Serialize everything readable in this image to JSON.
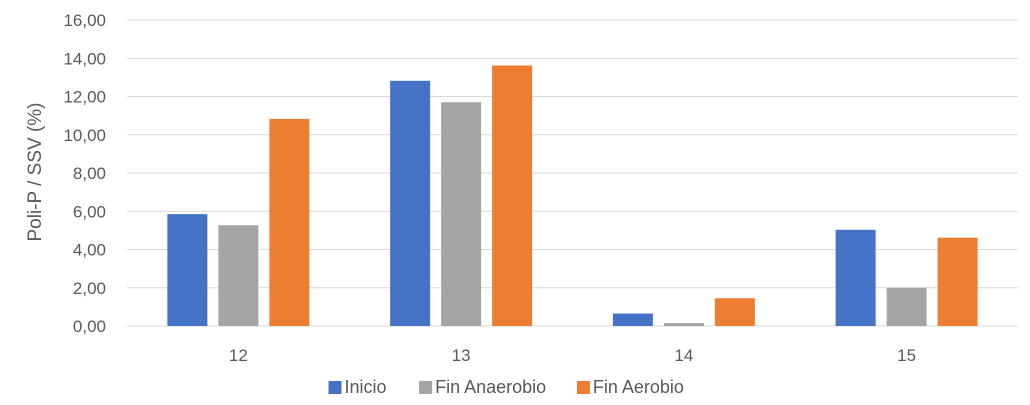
{
  "chart_data": {
    "type": "bar",
    "title": "",
    "xlabel": "",
    "ylabel": "Poli-P / SSV (%)",
    "categories": [
      "12",
      "13",
      "14",
      "15"
    ],
    "series": [
      {
        "name": "Inicio",
        "color": "#4472C4",
        "values": [
          5.85,
          12.82,
          0.65,
          5.03
        ]
      },
      {
        "name": "Fin Anaerobio",
        "color": "#A5A5A5",
        "values": [
          5.27,
          11.7,
          0.15,
          2.0
        ]
      },
      {
        "name": "Fin Aerobio",
        "color": "#ED7D31",
        "values": [
          10.83,
          13.62,
          1.45,
          4.62
        ]
      }
    ],
    "ylim": [
      0,
      16
    ],
    "yticks": [
      "0,00",
      "2,00",
      "4,00",
      "6,00",
      "8,00",
      "10,00",
      "12,00",
      "14,00",
      "16,00"
    ],
    "grid": true,
    "legend_position": "bottom"
  }
}
